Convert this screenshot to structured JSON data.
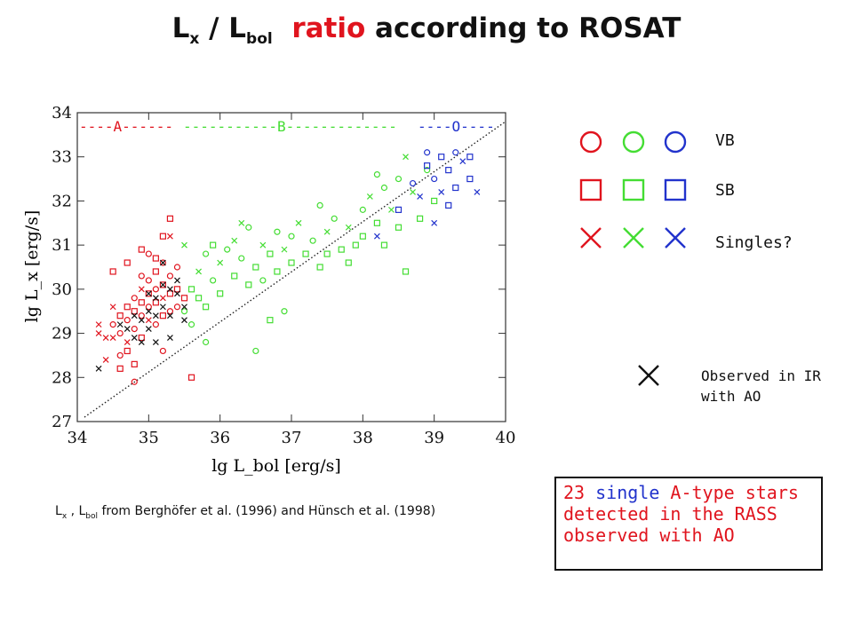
{
  "title": {
    "part1": "L",
    "sub1": "x",
    "part2": " / L",
    "sub2": "bol",
    "part3": "ratio",
    "part4": " according to ROSAT"
  },
  "legend": {
    "rows": [
      {
        "label": "VB",
        "marker": "circle"
      },
      {
        "label": "SB",
        "marker": "square"
      },
      {
        "label": "Singles?",
        "marker": "cross"
      }
    ],
    "colors": {
      "A": "#e0141e",
      "B": "#44dd33",
      "O": "#2233cc",
      "AO": "#111111"
    },
    "ao_label_line1": "Observed in IR",
    "ao_label_line2": "with AO"
  },
  "source_note": {
    "prefix": "L",
    "sub_x": "x",
    "middle": " , L",
    "sub_bol": "bol",
    "suffix": "  from Berghöfer et al. (1996) and Hünsch et al. (1998)"
  },
  "box": {
    "line1_a": "23 ",
    "line1_b": "single",
    "line1_c": " A-type stars",
    "line2": "detected in the RASS",
    "line3": "observed with AO"
  },
  "chart_data": {
    "type": "scatter",
    "xlabel": "lg L_bol [erg/s]",
    "ylabel": "lg L_x [erg/s]",
    "xlim": [
      34,
      40
    ],
    "ylim": [
      27,
      34
    ],
    "xticks": [
      34,
      35,
      36,
      37,
      38,
      39,
      40
    ],
    "yticks": [
      27,
      28,
      29,
      30,
      31,
      32,
      33,
      34
    ],
    "top_labels": [
      {
        "text": "----A------",
        "color": "#e0141e"
      },
      {
        "text": "-----------B-------------",
        "color": "#44dd33"
      },
      {
        "text": "----O----",
        "color": "#2233cc"
      }
    ],
    "reference_line": {
      "x": [
        34.1,
        40
      ],
      "y": [
        27.1,
        33.8
      ],
      "style": "dotted"
    },
    "series": [
      {
        "name": "A",
        "color": "#e0141e",
        "points": [
          [
            34.3,
            29.0,
            "x"
          ],
          [
            34.4,
            28.9,
            "x"
          ],
          [
            34.5,
            29.2,
            "o"
          ],
          [
            34.5,
            28.9,
            "x"
          ],
          [
            34.6,
            29.4,
            "s"
          ],
          [
            34.6,
            29.0,
            "o"
          ],
          [
            34.7,
            29.6,
            "s"
          ],
          [
            34.7,
            29.3,
            "o"
          ],
          [
            34.7,
            28.6,
            "s"
          ],
          [
            34.8,
            29.8,
            "o"
          ],
          [
            34.8,
            29.5,
            "s"
          ],
          [
            34.8,
            29.1,
            "o"
          ],
          [
            34.9,
            30.0,
            "x"
          ],
          [
            34.9,
            29.7,
            "s"
          ],
          [
            34.9,
            29.4,
            "o"
          ],
          [
            34.9,
            28.9,
            "s"
          ],
          [
            35.0,
            30.2,
            "o"
          ],
          [
            35.0,
            29.9,
            "s"
          ],
          [
            35.0,
            29.6,
            "o"
          ],
          [
            35.0,
            29.3,
            "x"
          ],
          [
            35.1,
            30.4,
            "s"
          ],
          [
            35.1,
            30.0,
            "o"
          ],
          [
            35.1,
            29.7,
            "s"
          ],
          [
            35.1,
            29.2,
            "o"
          ],
          [
            35.2,
            30.6,
            "o"
          ],
          [
            35.2,
            30.1,
            "s"
          ],
          [
            35.2,
            29.8,
            "x"
          ],
          [
            35.2,
            29.4,
            "s"
          ],
          [
            35.3,
            30.3,
            "o"
          ],
          [
            35.3,
            29.9,
            "s"
          ],
          [
            35.3,
            29.5,
            "o"
          ],
          [
            35.4,
            30.0,
            "s"
          ],
          [
            35.4,
            29.6,
            "o"
          ],
          [
            35.5,
            29.8,
            "s"
          ],
          [
            34.4,
            28.4,
            "x"
          ],
          [
            34.6,
            28.2,
            "s"
          ],
          [
            34.8,
            27.9,
            "o"
          ],
          [
            34.5,
            30.4,
            "s"
          ],
          [
            34.7,
            30.6,
            "s"
          ],
          [
            35.0,
            30.8,
            "o"
          ],
          [
            35.2,
            31.2,
            "s"
          ],
          [
            35.3,
            31.6,
            "s"
          ],
          [
            35.1,
            30.7,
            "s"
          ],
          [
            34.9,
            30.3,
            "o"
          ],
          [
            34.6,
            28.5,
            "o"
          ],
          [
            34.8,
            28.3,
            "s"
          ],
          [
            35.6,
            28.0,
            "s"
          ],
          [
            35.2,
            28.6,
            "o"
          ],
          [
            34.9,
            30.9,
            "s"
          ],
          [
            35.4,
            30.5,
            "o"
          ],
          [
            34.3,
            29.2,
            "x"
          ],
          [
            34.5,
            29.6,
            "x"
          ],
          [
            35.3,
            31.2,
            "x"
          ],
          [
            34.7,
            28.8,
            "x"
          ]
        ]
      },
      {
        "name": "B",
        "color": "#44dd33",
        "points": [
          [
            35.5,
            29.5,
            "o"
          ],
          [
            35.6,
            30.0,
            "s"
          ],
          [
            35.6,
            29.2,
            "o"
          ],
          [
            35.7,
            30.4,
            "x"
          ],
          [
            35.7,
            29.8,
            "s"
          ],
          [
            35.8,
            30.8,
            "o"
          ],
          [
            35.8,
            29.6,
            "s"
          ],
          [
            35.9,
            31.0,
            "s"
          ],
          [
            35.9,
            30.2,
            "o"
          ],
          [
            36.0,
            30.6,
            "x"
          ],
          [
            36.0,
            29.9,
            "s"
          ],
          [
            36.1,
            30.9,
            "o"
          ],
          [
            36.2,
            30.3,
            "s"
          ],
          [
            36.2,
            31.1,
            "x"
          ],
          [
            36.3,
            30.7,
            "o"
          ],
          [
            36.4,
            30.1,
            "s"
          ],
          [
            36.4,
            31.4,
            "o"
          ],
          [
            36.5,
            30.5,
            "s"
          ],
          [
            36.6,
            31.0,
            "x"
          ],
          [
            36.6,
            30.2,
            "o"
          ],
          [
            36.7,
            30.8,
            "s"
          ],
          [
            36.8,
            31.3,
            "o"
          ],
          [
            36.8,
            30.4,
            "s"
          ],
          [
            36.9,
            30.9,
            "x"
          ],
          [
            37.0,
            31.2,
            "o"
          ],
          [
            37.0,
            30.6,
            "s"
          ],
          [
            37.1,
            31.5,
            "x"
          ],
          [
            37.2,
            30.8,
            "s"
          ],
          [
            37.3,
            31.1,
            "o"
          ],
          [
            37.4,
            30.5,
            "s"
          ],
          [
            37.5,
            31.3,
            "x"
          ],
          [
            37.5,
            30.8,
            "s"
          ],
          [
            37.6,
            31.6,
            "o"
          ],
          [
            37.7,
            30.9,
            "s"
          ],
          [
            37.8,
            31.4,
            "x"
          ],
          [
            37.9,
            31.0,
            "s"
          ],
          [
            38.0,
            31.8,
            "o"
          ],
          [
            38.0,
            31.2,
            "s"
          ],
          [
            38.1,
            32.1,
            "x"
          ],
          [
            38.2,
            31.5,
            "s"
          ],
          [
            38.3,
            32.3,
            "o"
          ],
          [
            38.3,
            31.0,
            "s"
          ],
          [
            38.4,
            31.8,
            "x"
          ],
          [
            38.5,
            32.5,
            "o"
          ],
          [
            38.5,
            31.4,
            "s"
          ],
          [
            38.6,
            30.4,
            "s"
          ],
          [
            38.7,
            32.2,
            "x"
          ],
          [
            38.8,
            31.6,
            "s"
          ],
          [
            38.9,
            32.7,
            "o"
          ],
          [
            39.0,
            32.0,
            "s"
          ],
          [
            36.5,
            28.6,
            "o"
          ],
          [
            36.9,
            29.5,
            "o"
          ],
          [
            35.8,
            28.8,
            "o"
          ],
          [
            36.3,
            31.5,
            "x"
          ],
          [
            37.4,
            31.9,
            "o"
          ],
          [
            38.2,
            32.6,
            "o"
          ],
          [
            38.6,
            33.0,
            "x"
          ],
          [
            36.7,
            29.3,
            "s"
          ],
          [
            35.5,
            31.0,
            "x"
          ],
          [
            37.8,
            30.6,
            "s"
          ]
        ]
      },
      {
        "name": "O",
        "color": "#2233cc",
        "points": [
          [
            38.2,
            31.2,
            "x"
          ],
          [
            38.5,
            31.8,
            "s"
          ],
          [
            38.7,
            32.4,
            "o"
          ],
          [
            38.8,
            32.1,
            "x"
          ],
          [
            38.9,
            32.8,
            "s"
          ],
          [
            39.0,
            32.5,
            "o"
          ],
          [
            39.1,
            33.0,
            "s"
          ],
          [
            39.1,
            32.2,
            "x"
          ],
          [
            39.2,
            32.7,
            "s"
          ],
          [
            39.3,
            33.1,
            "o"
          ],
          [
            39.3,
            32.3,
            "s"
          ],
          [
            39.4,
            32.9,
            "x"
          ],
          [
            39.5,
            32.5,
            "s"
          ],
          [
            39.6,
            32.2,
            "x"
          ],
          [
            39.2,
            31.9,
            "s"
          ],
          [
            38.9,
            33.1,
            "o"
          ],
          [
            39.5,
            33.0,
            "s"
          ],
          [
            39.0,
            31.5,
            "x"
          ]
        ]
      },
      {
        "name": "AO",
        "color": "#111111",
        "points": [
          [
            34.3,
            28.2,
            "x"
          ],
          [
            34.6,
            29.2,
            "x"
          ],
          [
            34.7,
            29.1,
            "x"
          ],
          [
            34.8,
            28.9,
            "x"
          ],
          [
            34.9,
            29.3,
            "x"
          ],
          [
            35.0,
            29.5,
            "x"
          ],
          [
            35.0,
            29.1,
            "x"
          ],
          [
            35.1,
            29.8,
            "x"
          ],
          [
            35.1,
            28.8,
            "x"
          ],
          [
            35.2,
            29.6,
            "x"
          ],
          [
            35.2,
            30.1,
            "x"
          ],
          [
            35.3,
            29.4,
            "x"
          ],
          [
            35.3,
            28.9,
            "x"
          ],
          [
            35.4,
            29.9,
            "x"
          ],
          [
            35.4,
            30.2,
            "x"
          ],
          [
            35.5,
            29.3,
            "x"
          ],
          [
            35.5,
            29.6,
            "x"
          ],
          [
            35.2,
            30.6,
            "x"
          ],
          [
            35.0,
            29.9,
            "x"
          ],
          [
            34.8,
            29.4,
            "x"
          ],
          [
            35.3,
            30.0,
            "x"
          ],
          [
            34.9,
            28.8,
            "x"
          ],
          [
            35.1,
            29.4,
            "x"
          ]
        ]
      }
    ]
  }
}
